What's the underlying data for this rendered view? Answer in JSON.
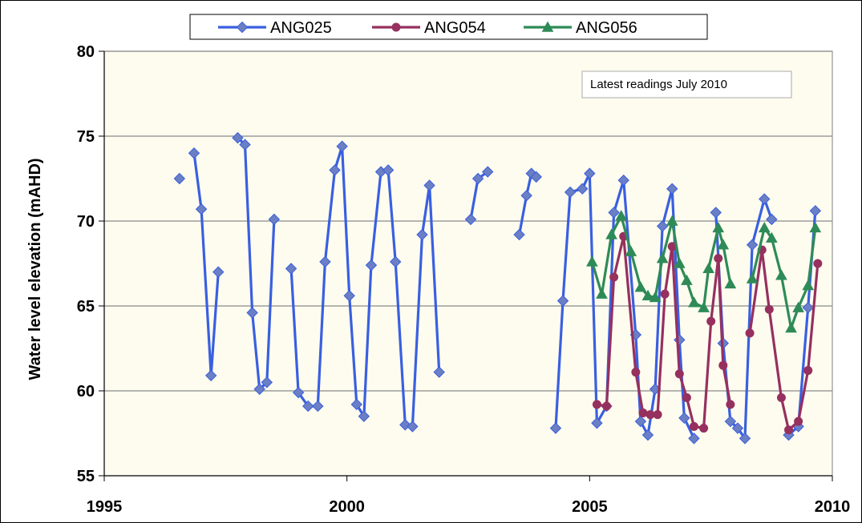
{
  "chart_data": {
    "type": "line",
    "title": "",
    "xlabel": "",
    "ylabel": "Water level elevation  (mAHD)",
    "xlim": [
      1995,
      2010
    ],
    "ylim": [
      55,
      80
    ],
    "x_ticks": [
      "1995",
      "2000",
      "2005",
      "2010"
    ],
    "y_ticks": [
      "55",
      "60",
      "65",
      "70",
      "75",
      "80"
    ],
    "grid": "horizontal",
    "legend_position": "top",
    "annotation": "Latest  readings  July 2010",
    "background_color": "#fdfcef",
    "series": [
      {
        "name": "ANG025",
        "color": "#3a5fe0",
        "marker": "diamond",
        "segments": [
          [
            [
              1996.55,
              72.5
            ]
          ],
          [
            [
              1996.85,
              74.0
            ],
            [
              1997.0,
              70.7
            ],
            [
              1997.2,
              60.9
            ],
            [
              1997.35,
              67.0
            ]
          ],
          [
            [
              1997.75,
              74.9
            ],
            [
              1997.9,
              74.5
            ],
            [
              1998.05,
              64.6
            ],
            [
              1998.2,
              60.1
            ],
            [
              1998.35,
              60.5
            ],
            [
              1998.5,
              70.1
            ]
          ],
          [
            [
              1998.85,
              67.2
            ],
            [
              1999.0,
              59.9
            ],
            [
              1999.2,
              59.1
            ],
            [
              1999.4,
              59.1
            ],
            [
              1999.55,
              67.6
            ],
            [
              1999.75,
              73.0
            ],
            [
              1999.9,
              74.4
            ],
            [
              2000.05,
              65.6
            ],
            [
              2000.2,
              59.2
            ],
            [
              2000.35,
              58.5
            ],
            [
              2000.5,
              67.4
            ],
            [
              2000.7,
              72.9
            ],
            [
              2000.85,
              73.0
            ],
            [
              2001.0,
              67.6
            ],
            [
              2001.2,
              58.0
            ],
            [
              2001.35,
              57.9
            ],
            [
              2001.55,
              69.2
            ],
            [
              2001.7,
              72.1
            ],
            [
              2001.9,
              61.1
            ]
          ],
          [
            [
              2002.55,
              70.1
            ],
            [
              2002.7,
              72.5
            ],
            [
              2002.9,
              72.9
            ]
          ],
          [
            [
              2003.55,
              69.2
            ],
            [
              2003.7,
              71.5
            ],
            [
              2003.8,
              72.8
            ],
            [
              2003.9,
              72.6
            ]
          ],
          [
            [
              2004.3,
              57.8
            ],
            [
              2004.45,
              65.3
            ],
            [
              2004.6,
              71.7
            ],
            [
              2004.85,
              71.9
            ],
            [
              2005.0,
              72.8
            ],
            [
              2005.15,
              58.1
            ],
            [
              2005.35,
              59.1
            ],
            [
              2005.5,
              70.5
            ],
            [
              2005.7,
              72.4
            ],
            [
              2005.95,
              63.3
            ],
            [
              2006.05,
              58.2
            ],
            [
              2006.2,
              57.4
            ],
            [
              2006.35,
              60.1
            ],
            [
              2006.5,
              69.7
            ],
            [
              2006.7,
              71.9
            ],
            [
              2006.85,
              63.0
            ],
            [
              2006.95,
              58.4
            ],
            [
              2007.15,
              57.2
            ]
          ],
          [
            [
              2007.6,
              70.5
            ],
            [
              2007.75,
              62.8
            ],
            [
              2007.9,
              58.2
            ],
            [
              2008.05,
              57.8
            ],
            [
              2008.2,
              57.2
            ],
            [
              2008.35,
              68.6
            ],
            [
              2008.6,
              71.3
            ],
            [
              2008.75,
              70.1
            ]
          ],
          [
            [
              2009.1,
              57.4
            ],
            [
              2009.3,
              57.9
            ],
            [
              2009.5,
              64.9
            ],
            [
              2009.65,
              70.6
            ]
          ]
        ]
      },
      {
        "name": "ANG054",
        "color": "#96305f",
        "marker": "circle",
        "segments": [
          [
            [
              2005.15,
              59.2
            ],
            [
              2005.35,
              59.1
            ],
            [
              2005.5,
              66.7
            ],
            [
              2005.7,
              69.1
            ],
            [
              2005.95,
              61.1
            ],
            [
              2006.1,
              58.7
            ],
            [
              2006.25,
              58.6
            ],
            [
              2006.4,
              58.6
            ],
            [
              2006.55,
              65.7
            ],
            [
              2006.7,
              68.5
            ],
            [
              2006.85,
              61.0
            ],
            [
              2007.0,
              59.6
            ],
            [
              2007.15,
              57.9
            ],
            [
              2007.35,
              57.8
            ],
            [
              2007.5,
              64.1
            ],
            [
              2007.65,
              67.8
            ],
            [
              2007.75,
              61.5
            ],
            [
              2007.9,
              59.2
            ]
          ],
          [
            [
              2008.3,
              63.4
            ],
            [
              2008.55,
              68.3
            ],
            [
              2008.7,
              64.8
            ],
            [
              2008.95,
              59.6
            ],
            [
              2009.1,
              57.7
            ],
            [
              2009.3,
              58.2
            ],
            [
              2009.5,
              61.2
            ],
            [
              2009.7,
              67.5
            ]
          ]
        ]
      },
      {
        "name": "ANG056",
        "color": "#2e8b57",
        "marker": "triangle",
        "segments": [
          [
            [
              2005.05,
              67.6
            ],
            [
              2005.25,
              65.7
            ],
            [
              2005.45,
              69.2
            ],
            [
              2005.65,
              70.3
            ],
            [
              2005.85,
              68.2
            ],
            [
              2006.05,
              66.1
            ],
            [
              2006.2,
              65.6
            ],
            [
              2006.35,
              65.5
            ],
            [
              2006.5,
              67.8
            ],
            [
              2006.7,
              70.0
            ],
            [
              2006.85,
              67.5
            ],
            [
              2007.0,
              66.5
            ],
            [
              2007.15,
              65.2
            ],
            [
              2007.35,
              64.9
            ],
            [
              2007.45,
              67.2
            ],
            [
              2007.65,
              69.6
            ],
            [
              2007.75,
              68.6
            ],
            [
              2007.9,
              66.3
            ]
          ],
          [
            [
              2008.35,
              66.6
            ],
            [
              2008.6,
              69.6
            ],
            [
              2008.75,
              69.0
            ],
            [
              2008.95,
              66.8
            ],
            [
              2009.15,
              63.7
            ],
            [
              2009.3,
              64.9
            ],
            [
              2009.5,
              66.2
            ],
            [
              2009.65,
              69.6
            ]
          ]
        ]
      }
    ]
  }
}
